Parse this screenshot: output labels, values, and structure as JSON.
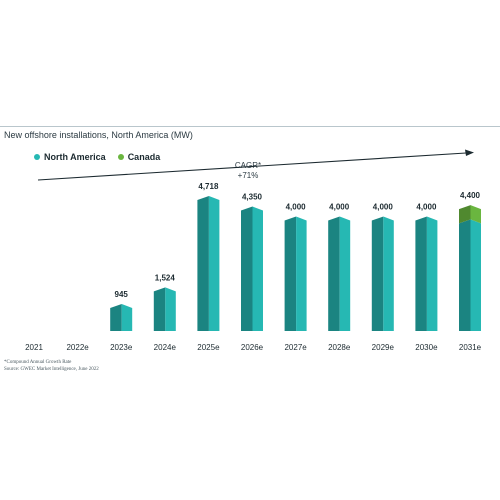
{
  "chart_data": {
    "type": "bar",
    "title": "New offshore installations, North America (MW)",
    "categories": [
      "2021",
      "2022e",
      "2023e",
      "2024e",
      "2025e",
      "2026e",
      "2027e",
      "2028e",
      "2029e",
      "2030e",
      "2031e"
    ],
    "series": [
      {
        "name": "North America",
        "color": "#26b8b3",
        "values": [
          0,
          0,
          945,
          1524,
          4718,
          4350,
          4000,
          4000,
          4000,
          4000,
          3900
        ]
      },
      {
        "name": "Canada",
        "color": "#6ab63f",
        "values": [
          0,
          0,
          0,
          0,
          0,
          0,
          0,
          0,
          0,
          0,
          500
        ]
      }
    ],
    "total_labels": [
      "",
      "",
      "945",
      "1,524",
      "4,718",
      "4,350",
      "4,000",
      "4,000",
      "4,000",
      "4,000",
      "4,400"
    ],
    "annotation": {
      "line1": "CAGR*",
      "line2": "+71%"
    },
    "stacked": true,
    "legend_position": "top-left",
    "grid": false
  },
  "footnotes": {
    "cagr_note": "*Compound Annual Growth Rate",
    "source": "Source: GWEC Market Intelligence, June 2022"
  }
}
